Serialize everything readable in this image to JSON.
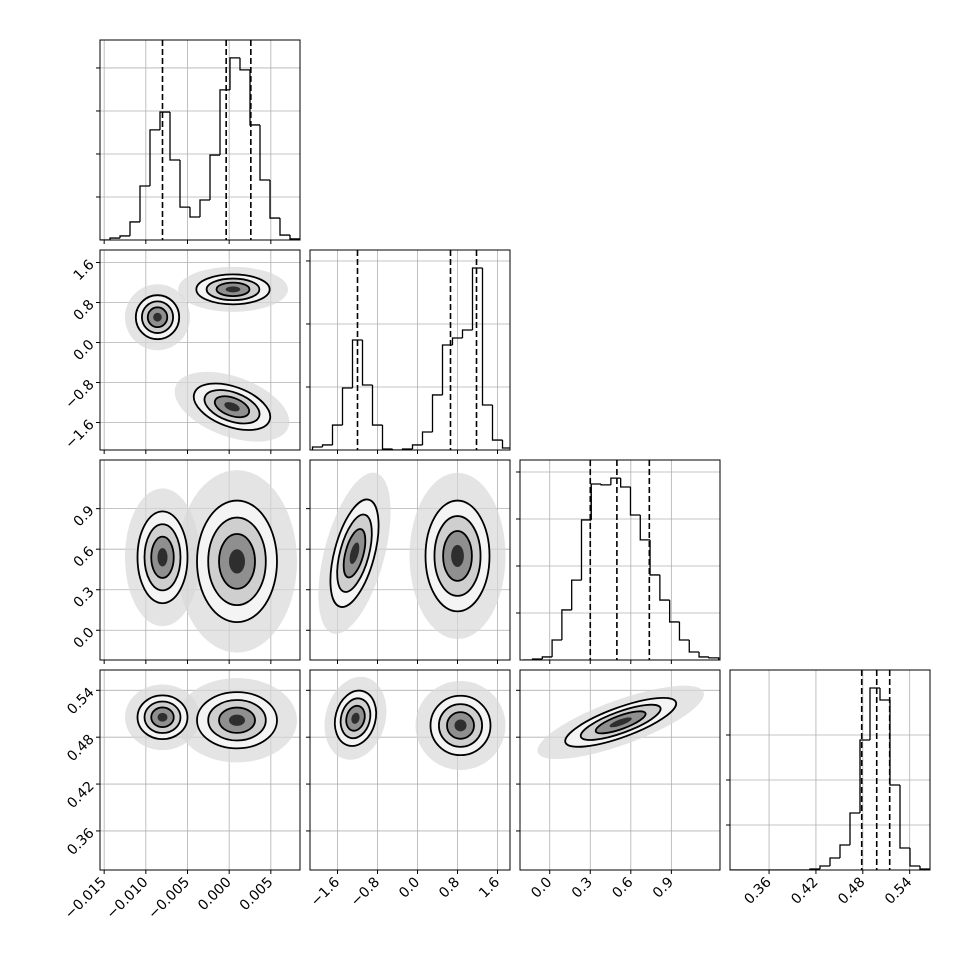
{
  "chart_data": {
    "type": "corner",
    "line_color": "#000000",
    "grid": true,
    "parameters": [
      {
        "xlim": [
          -0.0155,
          0.0085
        ],
        "xticks": [
          {
            "value": -0.015,
            "label": "−0.015"
          },
          {
            "value": -0.01,
            "label": "−0.010"
          },
          {
            "value": -0.005,
            "label": "−0.005"
          },
          {
            "value": 0,
            "label": "0.000"
          },
          0.005
        ],
        "quantiles": [
          -0.008,
          -0.00036,
          0.0026
        ],
        "bins": [
          -0.0155,
          -0.0143,
          -0.0131,
          -0.0119,
          -0.0107,
          -0.0095,
          -0.0083,
          -0.0071,
          -0.0059,
          -0.0047,
          -0.0035,
          -0.0023,
          -0.0011,
          0.0001,
          0.0013,
          0.0025,
          0.0037,
          0.0049,
          0.0061,
          0.0073,
          0.0085
        ],
        "counts": [
          0,
          9,
          19,
          84,
          251,
          512,
          595,
          372,
          153,
          107,
          186,
          395,
          698,
          847,
          791,
          535,
          279,
          102,
          23,
          5
        ],
        "hist_ylim": [
          0,
          930
        ],
        "hist_yticks": [
          200,
          400,
          600,
          800
        ]
      },
      {
        "xlim": [
          -2.15,
          1.85
        ],
        "xticks": [
          {
            "value": -1.6,
            "label": "−1.6"
          },
          {
            "value": -0.8,
            "label": "−0.8"
          },
          {
            "value": 0,
            "label": "0.0"
          },
          0.8,
          1.6
        ],
        "quantiles": [
          -1.2,
          0.66,
          1.18
        ],
        "bins": [
          -2.1,
          -1.9,
          -1.7,
          -1.5,
          -1.3,
          -1.1,
          -0.9,
          -0.7,
          -0.5,
          -0.3,
          -0.1,
          0.1,
          0.3,
          0.5,
          0.7,
          0.9,
          1.1,
          1.3,
          1.5,
          1.7,
          1.9
        ],
        "counts": [
          24,
          40,
          198,
          492,
          873,
          516,
          198,
          8,
          0,
          8,
          40,
          143,
          437,
          833,
          889,
          952,
          1444,
          357,
          79,
          16
        ],
        "hist_ylim": [
          0,
          1587
        ],
        "hist_yticks": [
          500,
          1000,
          1500
        ]
      },
      {
        "xlim": [
          -0.22,
          1.26
        ],
        "xticks": [
          {
            "value": 0,
            "label": "0.0"
          },
          0.3,
          0.6,
          0.9
        ],
        "quantiles": [
          0.3,
          0.497,
          0.737
        ],
        "bins": [
          -0.2,
          -0.1275,
          -0.055,
          0.0175,
          0.09,
          0.1625,
          0.235,
          0.3075,
          0.38,
          0.4525,
          0.525,
          0.5975,
          0.67,
          0.7425,
          0.815,
          0.8875,
          0.96,
          1.0325,
          1.105,
          1.1775,
          1.25
        ],
        "counts": [
          0,
          4,
          13,
          85,
          213,
          340,
          596,
          749,
          745,
          774,
          736,
          617,
          511,
          362,
          255,
          162,
          85,
          34,
          13,
          9
        ],
        "hist_ylim": [
          0,
          851
        ],
        "hist_yticks": [
          200,
          400,
          600,
          800
        ]
      },
      {
        "xlim": [
          0.31,
          0.566
        ],
        "xticks": [
          0.36,
          0.42,
          0.48,
          0.54
        ],
        "quantiles": [
          0.4786,
          0.4978,
          0.5144
        ],
        "bins": [
          0.31,
          0.3228,
          0.3356,
          0.3484,
          0.3612,
          0.374,
          0.3868,
          0.3996,
          0.4124,
          0.4252,
          0.438,
          0.4508,
          0.4636,
          0.4764,
          0.4892,
          0.502,
          0.5148,
          0.5276,
          0.5404,
          0.5532,
          0.566
        ],
        "counts": [
          0,
          0,
          0,
          0,
          0,
          0,
          0,
          0,
          22,
          89,
          267,
          556,
          1267,
          2889,
          4044,
          3778,
          1889,
          489,
          89,
          22
        ],
        "hist_ylim": [
          0,
          4444
        ],
        "hist_yticks": [
          1000,
          2000,
          3000
        ]
      }
    ],
    "pairs": [
      [
        [
          {
            "x": -0.0086,
            "y": 0.506,
            "rx": 0.0026,
            "ry": 0.44,
            "angle": 0
          },
          {
            "x": 0.00046,
            "y": 1.063,
            "rx": 0.0044,
            "ry": 0.3,
            "angle": 0
          },
          {
            "x": 0.00034,
            "y": -1.285,
            "rx": 0.0048,
            "ry": 0.4,
            "angle": 20
          }
        ]
      ],
      [
        [
          {
            "x": -0.008,
            "y": 0.54,
            "rx": 0.003,
            "ry": 0.34,
            "angle": 0
          },
          {
            "x": 0.00094,
            "y": 0.51,
            "rx": 0.0048,
            "ry": 0.45,
            "angle": 0
          }
        ],
        [
          {
            "x": -1.26,
            "y": 0.57,
            "rx": 0.4,
            "ry": 0.41,
            "angle": 15
          },
          {
            "x": 0.8,
            "y": 0.55,
            "rx": 0.64,
            "ry": 0.41,
            "angle": 0
          }
        ]
      ],
      [
        [
          {
            "x": -0.008,
            "y": 0.5055,
            "rx": 0.003,
            "ry": 0.028,
            "angle": 0
          },
          {
            "x": 0.00094,
            "y": 0.5017,
            "rx": 0.0048,
            "ry": 0.036,
            "angle": 0
          }
        ],
        [
          {
            "x": -1.24,
            "y": 0.5042,
            "rx": 0.4,
            "ry": 0.036,
            "angle": 15
          },
          {
            "x": 0.86,
            "y": 0.495,
            "rx": 0.6,
            "ry": 0.038,
            "angle": 0
          }
        ],
        [
          {
            "x": 0.525,
            "y": 0.499,
            "rx": 0.435,
            "ry": 0.019,
            "angle": -20
          }
        ]
      ]
    ]
  }
}
